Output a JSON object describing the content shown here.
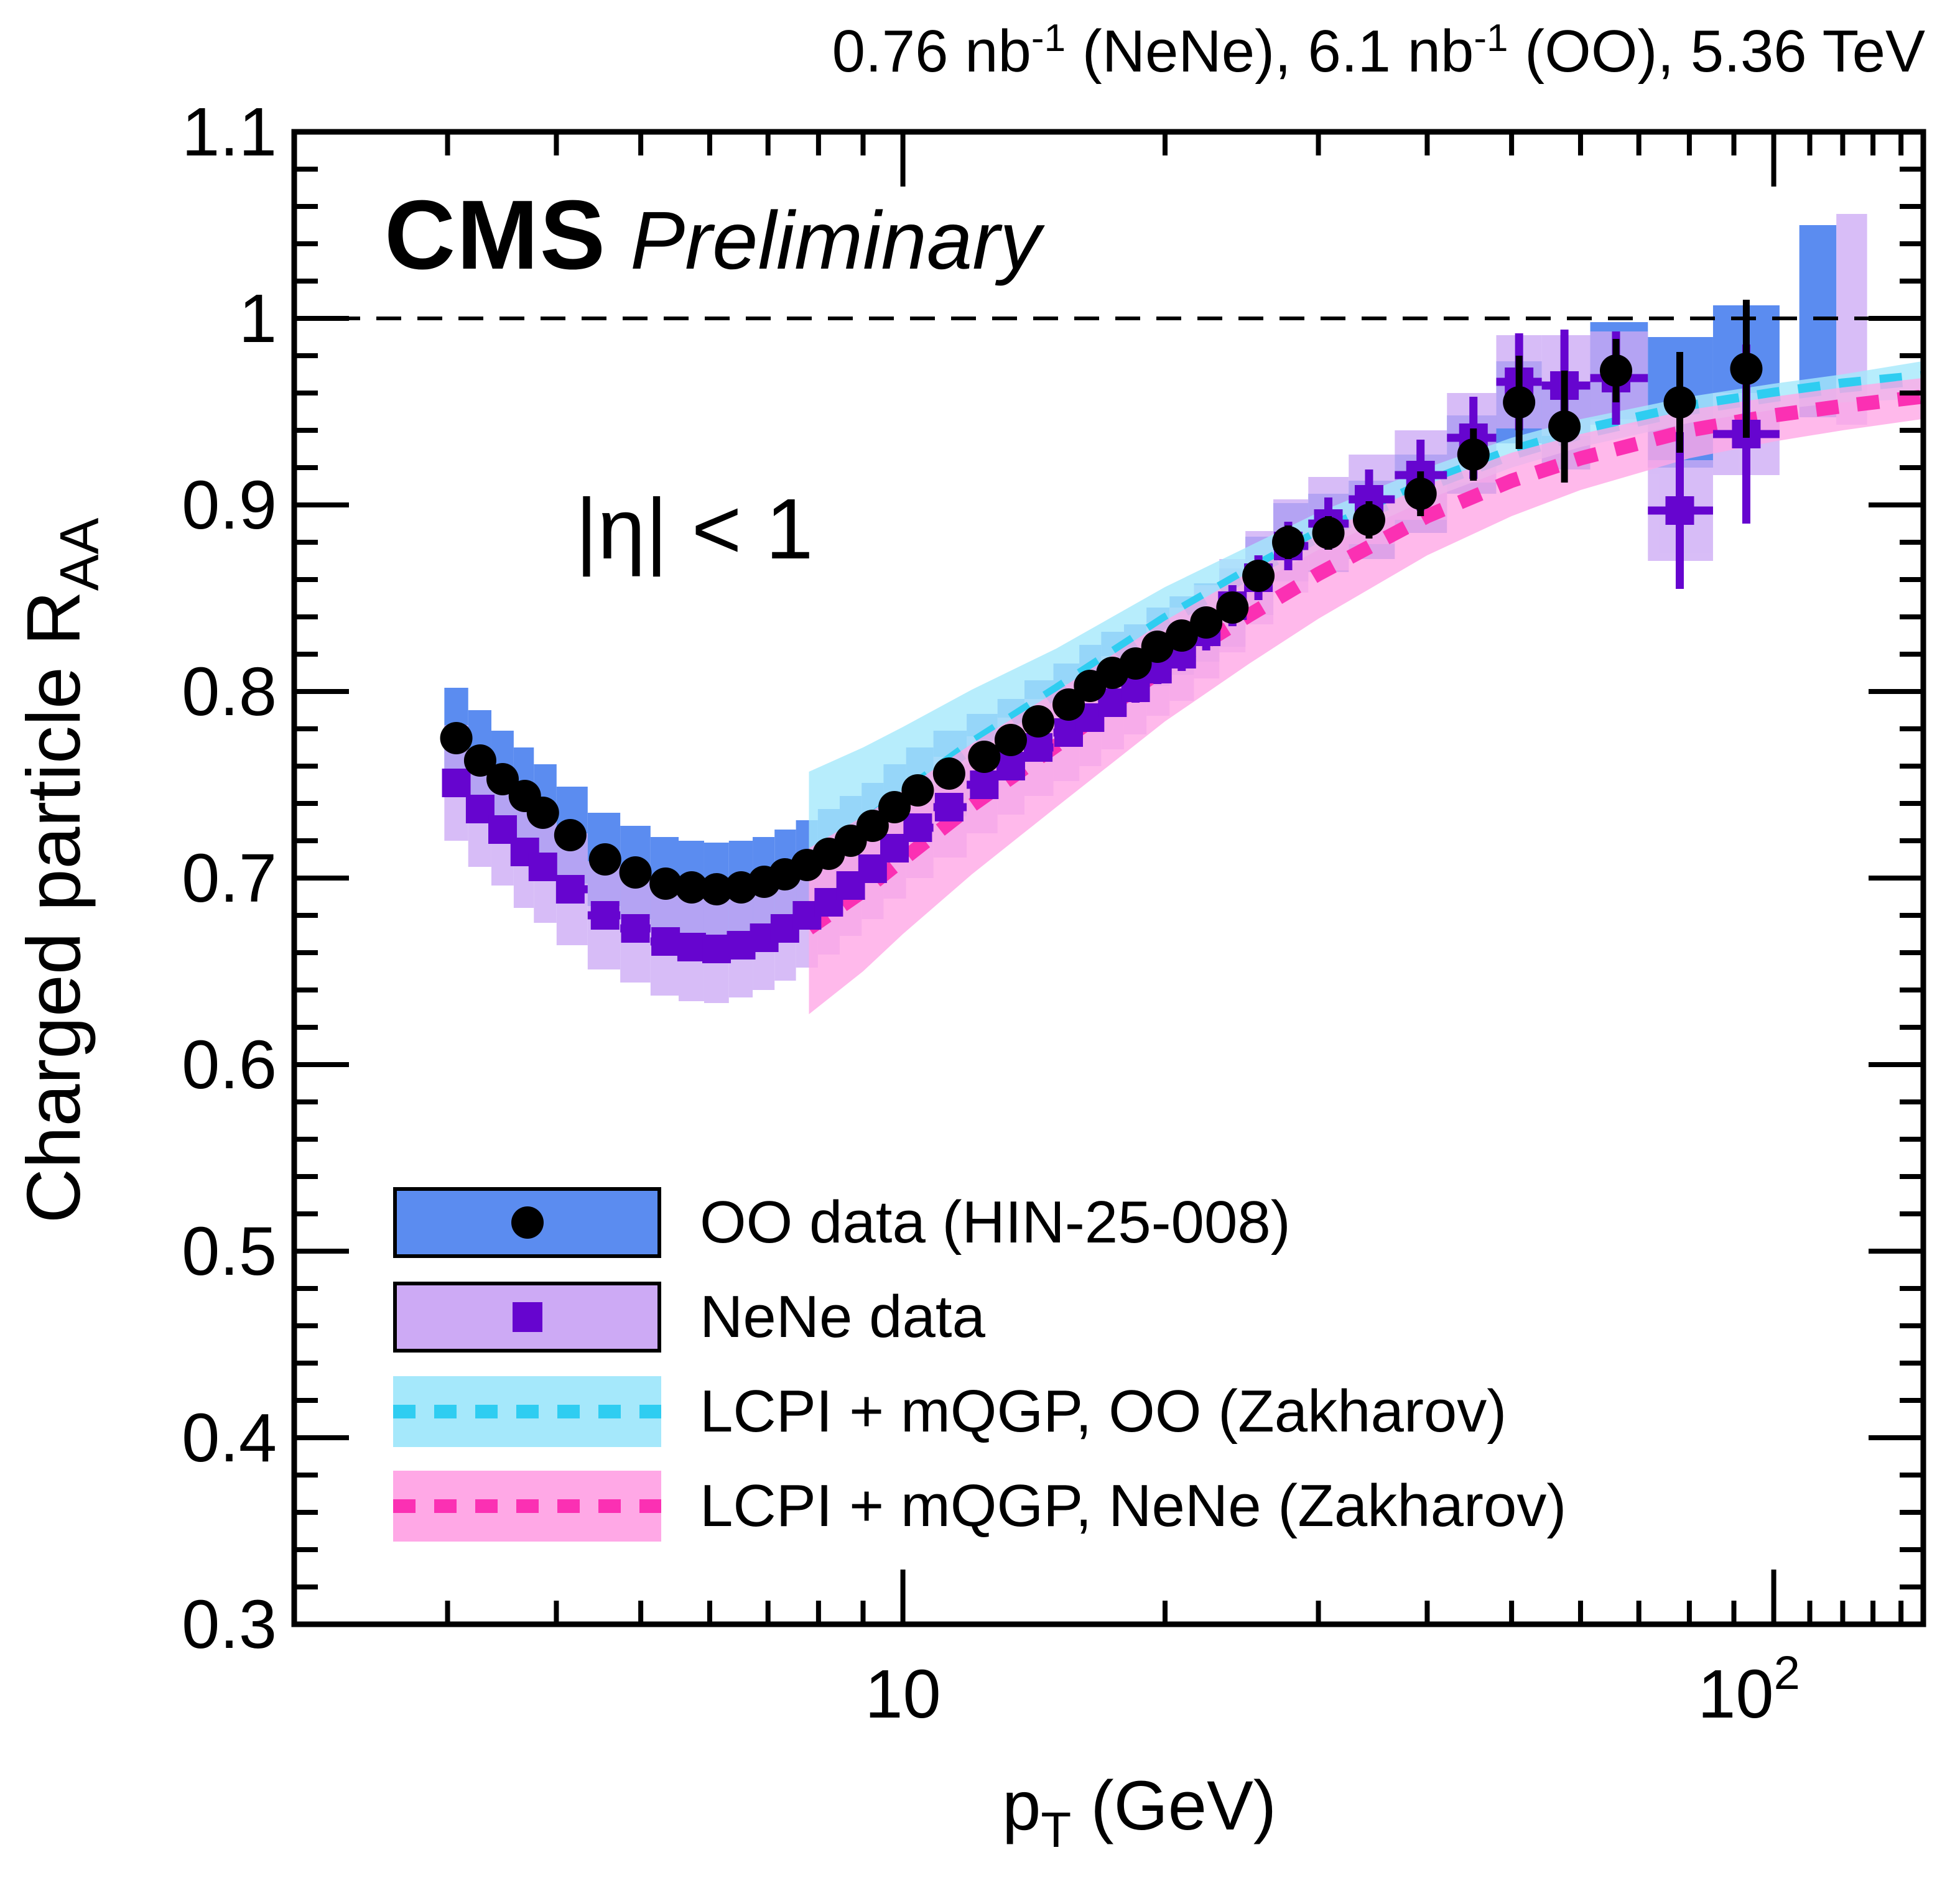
{
  "header": {
    "lumi_a": "0.76 nb",
    "exp_a": "-1",
    "mid": " (NeNe), 6.1 nb",
    "exp_b": "-1",
    "tail": " (OO), 5.36 TeV"
  },
  "cms": {
    "label": "CMS",
    "sublabel": "Preliminary"
  },
  "eta_label": "|η| < 1",
  "legend": [
    {
      "id": "oo-data",
      "label": "OO data (HIN-25-008)",
      "swatch": "blue-box-circle"
    },
    {
      "id": "nene-data",
      "label": "NeNe data",
      "swatch": "lavender-box-square"
    },
    {
      "id": "theory-oo",
      "label": "LCPI + mQGP, OO (Zakharov)",
      "swatch": "cyan-band-dash"
    },
    {
      "id": "theory-nene",
      "label": "LCPI + mQGP, NeNe (Zakharov)",
      "swatch": "pink-band-dash"
    }
  ],
  "colors": {
    "oo_box": "#5b8cf0",
    "nene_box": "#cdaaf5",
    "nene_marker": "#6605cf",
    "oo_marker": "#000000",
    "theory_oo_band": "#a5e8fb",
    "theory_oo_line": "#2fcdf1",
    "theory_nene_band": "#ffa8e6",
    "theory_nene_line": "#fb30b3",
    "axis": "#000000"
  },
  "chart_data": {
    "type": "scatter",
    "title": "0.76 nb-1 (NeNe), 6.1 nb-1 (OO), 5.36 TeV",
    "xlabel_parts": {
      "p": "p",
      "sub": "T",
      "rest": " (GeV)"
    },
    "ylabel_parts": {
      "main": "Charged particle R",
      "sub": "AA"
    },
    "x_axis": {
      "scale": "log",
      "min": 2.0,
      "max": 148.3,
      "major_ticks": [
        10,
        100
      ],
      "major_tick_labels": [
        {
          "base": "10",
          "exp": ""
        },
        {
          "base": "10",
          "exp": "2"
        }
      ],
      "minor_ticks": [
        3,
        4,
        5,
        6,
        7,
        8,
        9,
        20,
        30,
        40,
        50,
        60,
        70,
        80,
        90,
        110,
        120,
        130,
        140
      ]
    },
    "y_axis": {
      "scale": "linear",
      "min": 0.3,
      "max": 1.1,
      "major_ticks": [
        1.1,
        1.0,
        0.9,
        0.8,
        0.7,
        0.6,
        0.5,
        0.4,
        0.3
      ],
      "major_tick_labels": [
        "1.1",
        "1",
        "0.9",
        "0.8",
        "0.7",
        "0.6",
        "0.5",
        "0.4",
        "0.3"
      ],
      "minor_step": 0.02
    },
    "unity_line": 1.0,
    "series": [
      {
        "name": "OO data (HIN-25-008)",
        "marker": "circle",
        "points": [
          [
            3.07,
            0.775,
            0.027,
            0.004
          ],
          [
            3.27,
            0.763,
            0.027,
            0.004
          ],
          [
            3.47,
            0.753,
            0.026,
            0.004
          ],
          [
            3.68,
            0.744,
            0.026,
            0.004
          ],
          [
            3.86,
            0.735,
            0.026,
            0.004
          ],
          [
            4.15,
            0.723,
            0.026,
            0.004
          ],
          [
            4.55,
            0.71,
            0.025,
            0.004
          ],
          [
            4.93,
            0.703,
            0.025,
            0.004
          ],
          [
            5.34,
            0.697,
            0.025,
            0.004
          ],
          [
            5.72,
            0.695,
            0.025,
            0.004
          ],
          [
            6.11,
            0.694,
            0.025,
            0.004
          ],
          [
            6.52,
            0.695,
            0.025,
            0.004
          ],
          [
            6.93,
            0.698,
            0.024,
            0.004
          ],
          [
            7.32,
            0.702,
            0.024,
            0.004
          ],
          [
            7.76,
            0.707,
            0.024,
            0.004
          ],
          [
            8.22,
            0.713,
            0.024,
            0.004
          ],
          [
            8.71,
            0.72,
            0.024,
            0.004
          ],
          [
            9.23,
            0.728,
            0.023,
            0.004
          ],
          [
            9.78,
            0.738,
            0.023,
            0.004
          ],
          [
            10.4,
            0.747,
            0.023,
            0.005
          ],
          [
            11.3,
            0.756,
            0.023,
            0.005
          ],
          [
            12.4,
            0.765,
            0.023,
            0.005
          ],
          [
            13.3,
            0.774,
            0.022,
            0.005
          ],
          [
            14.3,
            0.784,
            0.022,
            0.005
          ],
          [
            15.5,
            0.793,
            0.022,
            0.005
          ],
          [
            16.4,
            0.803,
            0.022,
            0.006
          ],
          [
            17.4,
            0.81,
            0.022,
            0.006
          ],
          [
            18.5,
            0.815,
            0.021,
            0.006
          ],
          [
            19.6,
            0.824,
            0.021,
            0.006
          ],
          [
            20.9,
            0.83,
            0.021,
            0.007
          ],
          [
            22.3,
            0.837,
            0.021,
            0.007
          ],
          [
            23.9,
            0.845,
            0.021,
            0.008
          ],
          [
            25.6,
            0.862,
            0.021,
            0.008
          ],
          [
            27.7,
            0.88,
            0.021,
            0.009
          ],
          [
            30.8,
            0.885,
            0.021,
            0.009
          ],
          [
            34.3,
            0.892,
            0.021,
            0.01
          ],
          [
            39.3,
            0.906,
            0.021,
            0.012
          ],
          [
            45.2,
            0.927,
            0.021,
            0.014
          ],
          [
            51.0,
            0.955,
            0.022,
            0.025
          ],
          [
            57.5,
            0.942,
            0.023,
            0.03
          ],
          [
            65.9,
            0.972,
            0.026,
            0.017
          ],
          [
            78.0,
            0.955,
            0.035,
            0.027
          ],
          [
            93.0,
            0.973,
            0.034,
            0.037
          ]
        ],
        "extra_boxes": [
          {
            "p_lo": 107,
            "p_hi": 118,
            "r_lo": 0.947,
            "r_hi": 1.05
          }
        ]
      },
      {
        "name": "NeNe data",
        "marker": "square",
        "points": [
          [
            3.07,
            0.751,
            0.031,
            0.004
          ],
          [
            3.27,
            0.737,
            0.031,
            0.004
          ],
          [
            3.47,
            0.726,
            0.03,
            0.004
          ],
          [
            3.68,
            0.714,
            0.03,
            0.004
          ],
          [
            3.86,
            0.706,
            0.03,
            0.004
          ],
          [
            4.15,
            0.694,
            0.03,
            0.004
          ],
          [
            4.55,
            0.68,
            0.029,
            0.004
          ],
          [
            4.93,
            0.673,
            0.029,
            0.004
          ],
          [
            5.34,
            0.666,
            0.029,
            0.004
          ],
          [
            5.72,
            0.663,
            0.029,
            0.004
          ],
          [
            6.11,
            0.662,
            0.029,
            0.004
          ],
          [
            6.52,
            0.664,
            0.028,
            0.004
          ],
          [
            6.93,
            0.668,
            0.028,
            0.004
          ],
          [
            7.32,
            0.673,
            0.028,
            0.004
          ],
          [
            7.76,
            0.68,
            0.028,
            0.005
          ],
          [
            8.22,
            0.687,
            0.028,
            0.005
          ],
          [
            8.71,
            0.696,
            0.027,
            0.005
          ],
          [
            9.23,
            0.705,
            0.027,
            0.005
          ],
          [
            9.78,
            0.716,
            0.027,
            0.005
          ],
          [
            10.4,
            0.727,
            0.027,
            0.005
          ],
          [
            11.3,
            0.738,
            0.027,
            0.006
          ],
          [
            12.4,
            0.75,
            0.026,
            0.006
          ],
          [
            13.3,
            0.76,
            0.026,
            0.006
          ],
          [
            14.3,
            0.77,
            0.026,
            0.006
          ],
          [
            15.5,
            0.778,
            0.026,
            0.007
          ],
          [
            16.4,
            0.786,
            0.026,
            0.007
          ],
          [
            17.4,
            0.794,
            0.025,
            0.007
          ],
          [
            18.5,
            0.802,
            0.025,
            0.008
          ],
          [
            19.6,
            0.812,
            0.025,
            0.008
          ],
          [
            20.9,
            0.82,
            0.025,
            0.009
          ],
          [
            22.3,
            0.832,
            0.025,
            0.01
          ],
          [
            23.9,
            0.846,
            0.025,
            0.011
          ],
          [
            25.6,
            0.861,
            0.025,
            0.012
          ],
          [
            27.7,
            0.878,
            0.025,
            0.013
          ],
          [
            30.8,
            0.89,
            0.025,
            0.014
          ],
          [
            34.3,
            0.903,
            0.024,
            0.016
          ],
          [
            39.3,
            0.916,
            0.024,
            0.019
          ],
          [
            45.2,
            0.936,
            0.024,
            0.022
          ],
          [
            51.0,
            0.966,
            0.025,
            0.026
          ],
          [
            57.5,
            0.964,
            0.027,
            0.03
          ],
          [
            65.9,
            0.968,
            0.025,
            0.025
          ],
          [
            78.0,
            0.897,
            0.027,
            0.042
          ],
          [
            93.0,
            0.938,
            0.022,
            0.048
          ]
        ],
        "extra_boxes": [
          {
            "p_lo": 118,
            "p_hi": 128,
            "r_lo": 0.943,
            "r_hi": 1.056
          }
        ]
      }
    ],
    "theory_bands": [
      {
        "name": "LCPI + mQGP, OO (Zakharov)",
        "x": [
          7.8,
          9.0,
          10,
          12,
          15,
          20,
          25,
          30,
          40,
          50,
          60,
          80,
          100,
          120,
          148
        ],
        "center": [
          0.71,
          0.728,
          0.744,
          0.771,
          0.8,
          0.838,
          0.864,
          0.884,
          0.911,
          0.928,
          0.939,
          0.952,
          0.959,
          0.964,
          0.968
        ],
        "upper": [
          0.757,
          0.77,
          0.781,
          0.801,
          0.823,
          0.856,
          0.878,
          0.896,
          0.92,
          0.936,
          0.946,
          0.958,
          0.965,
          0.97,
          0.977
        ],
        "lower": [
          0.703,
          0.721,
          0.737,
          0.763,
          0.792,
          0.83,
          0.856,
          0.876,
          0.903,
          0.92,
          0.931,
          0.944,
          0.951,
          0.955,
          0.957
        ]
      },
      {
        "name": "LCPI + mQGP, NeNe (Zakharov)",
        "x": [
          7.8,
          9.0,
          10,
          12,
          15,
          20,
          25,
          30,
          40,
          50,
          60,
          80,
          100,
          120,
          148
        ],
        "center": [
          0.673,
          0.693,
          0.71,
          0.739,
          0.771,
          0.813,
          0.841,
          0.863,
          0.894,
          0.913,
          0.925,
          0.94,
          0.948,
          0.953,
          0.958
        ],
        "upper": [
          0.716,
          0.733,
          0.747,
          0.772,
          0.8,
          0.838,
          0.864,
          0.884,
          0.911,
          0.928,
          0.938,
          0.951,
          0.958,
          0.963,
          0.968
        ],
        "lower": [
          0.627,
          0.65,
          0.67,
          0.702,
          0.738,
          0.784,
          0.815,
          0.839,
          0.873,
          0.894,
          0.908,
          0.925,
          0.934,
          0.94,
          0.946
        ]
      }
    ]
  }
}
